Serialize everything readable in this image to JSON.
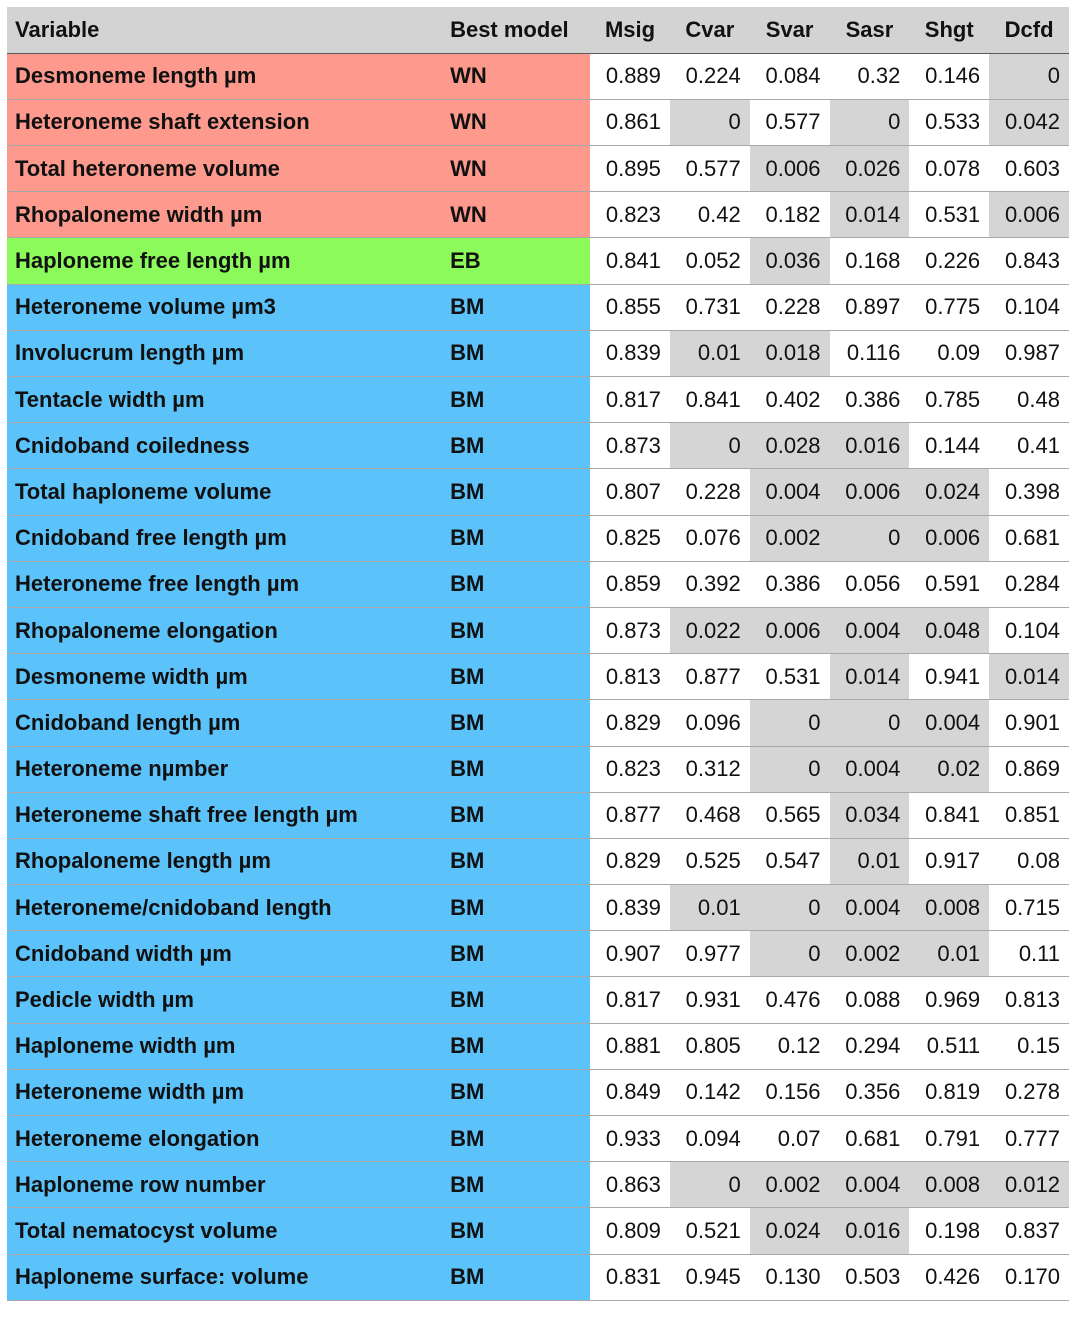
{
  "colors": {
    "WN": "#fd9a8d",
    "EB": "#8dfa5c",
    "BM": "#5cc2fa",
    "significant": "#d5d5d5",
    "header": "#d3d3d3"
  },
  "headers": [
    "Variable",
    "Best model",
    "Msig",
    "Cvar",
    "Svar",
    "Sasr",
    "Shgt",
    "Dcfd"
  ],
  "rows": [
    {
      "variable": "Desmoneme length µm",
      "model": "WN",
      "values": [
        "0.889",
        "0.224",
        "0.084",
        "0.32",
        "0.146",
        "0"
      ],
      "shaded": [
        false,
        false,
        false,
        false,
        false,
        true
      ]
    },
    {
      "variable": "Heteroneme shaft extension",
      "model": "WN",
      "values": [
        "0.861",
        "0",
        "0.577",
        "0",
        "0.533",
        "0.042"
      ],
      "shaded": [
        false,
        true,
        false,
        true,
        false,
        true
      ]
    },
    {
      "variable": "Total heteroneme volume",
      "model": "WN",
      "values": [
        "0.895",
        "0.577",
        "0.006",
        "0.026",
        "0.078",
        "0.603"
      ],
      "shaded": [
        false,
        false,
        true,
        true,
        false,
        false
      ]
    },
    {
      "variable": "Rhopaloneme width µm",
      "model": "WN",
      "values": [
        "0.823",
        "0.42",
        "0.182",
        "0.014",
        "0.531",
        "0.006"
      ],
      "shaded": [
        false,
        false,
        false,
        true,
        false,
        true
      ]
    },
    {
      "variable": "Haploneme free length µm",
      "model": "EB",
      "values": [
        "0.841",
        "0.052",
        "0.036",
        "0.168",
        "0.226",
        "0.843"
      ],
      "shaded": [
        false,
        false,
        true,
        false,
        false,
        false
      ]
    },
    {
      "variable": "Heteroneme volume µm3",
      "model": "BM",
      "values": [
        "0.855",
        "0.731",
        "0.228",
        "0.897",
        "0.775",
        "0.104"
      ],
      "shaded": [
        false,
        false,
        false,
        false,
        false,
        false
      ]
    },
    {
      "variable": "Involucrum length µm",
      "model": "BM",
      "values": [
        "0.839",
        "0.01",
        "0.018",
        "0.116",
        "0.09",
        "0.987"
      ],
      "shaded": [
        false,
        true,
        true,
        false,
        false,
        false
      ]
    },
    {
      "variable": "Tentacle width µm",
      "model": "BM",
      "values": [
        "0.817",
        "0.841",
        "0.402",
        "0.386",
        "0.785",
        "0.48"
      ],
      "shaded": [
        false,
        false,
        false,
        false,
        false,
        false
      ]
    },
    {
      "variable": "Cnidoband coiledness",
      "model": "BM",
      "values": [
        "0.873",
        "0",
        "0.028",
        "0.016",
        "0.144",
        "0.41"
      ],
      "shaded": [
        false,
        true,
        true,
        true,
        false,
        false
      ]
    },
    {
      "variable": "Total haploneme volume",
      "model": "BM",
      "values": [
        "0.807",
        "0.228",
        "0.004",
        "0.006",
        "0.024",
        "0.398"
      ],
      "shaded": [
        false,
        false,
        true,
        true,
        true,
        false
      ]
    },
    {
      "variable": "Cnidoband free length µm",
      "model": "BM",
      "values": [
        "0.825",
        "0.076",
        "0.002",
        "0",
        "0.006",
        "0.681"
      ],
      "shaded": [
        false,
        false,
        true,
        true,
        true,
        false
      ]
    },
    {
      "variable": "Heteroneme free length µm",
      "model": "BM",
      "values": [
        "0.859",
        "0.392",
        "0.386",
        "0.056",
        "0.591",
        "0.284"
      ],
      "shaded": [
        false,
        false,
        false,
        false,
        false,
        false
      ]
    },
    {
      "variable": "Rhopaloneme elongation",
      "model": "BM",
      "values": [
        "0.873",
        "0.022",
        "0.006",
        "0.004",
        "0.048",
        "0.104"
      ],
      "shaded": [
        false,
        true,
        true,
        true,
        true,
        false
      ]
    },
    {
      "variable": "Desmoneme width µm",
      "model": "BM",
      "values": [
        "0.813",
        "0.877",
        "0.531",
        "0.014",
        "0.941",
        "0.014"
      ],
      "shaded": [
        false,
        false,
        false,
        true,
        false,
        true
      ]
    },
    {
      "variable": "Cnidoband length µm",
      "model": "BM",
      "values": [
        "0.829",
        "0.096",
        "0",
        "0",
        "0.004",
        "0.901"
      ],
      "shaded": [
        false,
        false,
        true,
        true,
        true,
        false
      ]
    },
    {
      "variable": "Heteroneme nµmber",
      "model": "BM",
      "values": [
        "0.823",
        "0.312",
        "0",
        "0.004",
        "0.02",
        "0.869"
      ],
      "shaded": [
        false,
        false,
        true,
        true,
        true,
        false
      ]
    },
    {
      "variable": "Heteroneme shaft free length µm",
      "model": "BM",
      "values": [
        "0.877",
        "0.468",
        "0.565",
        "0.034",
        "0.841",
        "0.851"
      ],
      "shaded": [
        false,
        false,
        false,
        true,
        false,
        false
      ]
    },
    {
      "variable": "Rhopaloneme length µm",
      "model": "BM",
      "values": [
        "0.829",
        "0.525",
        "0.547",
        "0.01",
        "0.917",
        "0.08"
      ],
      "shaded": [
        false,
        false,
        false,
        true,
        false,
        false
      ]
    },
    {
      "variable": "Heteroneme/cnidoband length",
      "model": "BM",
      "values": [
        "0.839",
        "0.01",
        "0",
        "0.004",
        "0.008",
        "0.715"
      ],
      "shaded": [
        false,
        true,
        true,
        true,
        true,
        false
      ]
    },
    {
      "variable": "Cnidoband width µm",
      "model": "BM",
      "values": [
        "0.907",
        "0.977",
        "0",
        "0.002",
        "0.01",
        "0.11"
      ],
      "shaded": [
        false,
        false,
        true,
        true,
        true,
        false
      ]
    },
    {
      "variable": "Pedicle width µm",
      "model": "BM",
      "values": [
        "0.817",
        "0.931",
        "0.476",
        "0.088",
        "0.969",
        "0.813"
      ],
      "shaded": [
        false,
        false,
        false,
        false,
        false,
        false
      ]
    },
    {
      "variable": "Haploneme width µm",
      "model": "BM",
      "values": [
        "0.881",
        "0.805",
        "0.12",
        "0.294",
        "0.511",
        "0.15"
      ],
      "shaded": [
        false,
        false,
        false,
        false,
        false,
        false
      ]
    },
    {
      "variable": "Heteroneme width µm",
      "model": "BM",
      "values": [
        "0.849",
        "0.142",
        "0.156",
        "0.356",
        "0.819",
        "0.278"
      ],
      "shaded": [
        false,
        false,
        false,
        false,
        false,
        false
      ]
    },
    {
      "variable": "Heteroneme elongation",
      "model": "BM",
      "values": [
        "0.933",
        "0.094",
        "0.07",
        "0.681",
        "0.791",
        "0.777"
      ],
      "shaded": [
        false,
        false,
        false,
        false,
        false,
        false
      ]
    },
    {
      "variable": "Haploneme row number",
      "model": "BM",
      "values": [
        "0.863",
        "0",
        "0.002",
        "0.004",
        "0.008",
        "0.012"
      ],
      "shaded": [
        false,
        true,
        true,
        true,
        true,
        true
      ]
    },
    {
      "variable": "Total nematocyst volume",
      "model": "BM",
      "values": [
        "0.809",
        "0.521",
        "0.024",
        "0.016",
        "0.198",
        "0.837"
      ],
      "shaded": [
        false,
        false,
        true,
        true,
        false,
        false
      ]
    },
    {
      "variable": "Haploneme surface: volume",
      "model": "BM",
      "values": [
        "0.831",
        "0.945",
        "0.130",
        "0.503",
        "0.426",
        "0.170"
      ],
      "shaded": [
        false,
        false,
        false,
        false,
        false,
        false
      ]
    }
  ]
}
